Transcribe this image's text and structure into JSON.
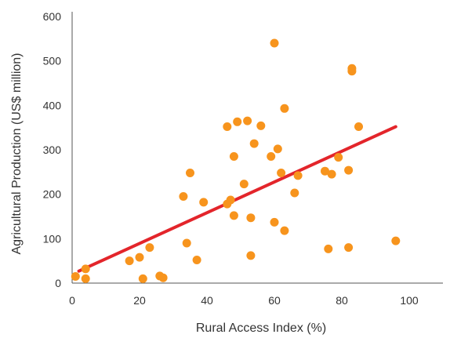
{
  "chart_data": {
    "type": "scatter",
    "xlabel": "Rural Access Index (%)",
    "ylabel": "Agricultural Production (US$ million)",
    "xlim": [
      0,
      110
    ],
    "ylim": [
      0,
      600
    ],
    "x_ticks": [
      0,
      20,
      40,
      60,
      80,
      100
    ],
    "y_ticks": [
      0,
      100,
      200,
      300,
      400,
      500,
      600
    ],
    "grid": false,
    "legend": "none",
    "points": [
      {
        "x": 1,
        "y": 15
      },
      {
        "x": 4,
        "y": 32
      },
      {
        "x": 4,
        "y": 10
      },
      {
        "x": 17,
        "y": 50
      },
      {
        "x": 20,
        "y": 58
      },
      {
        "x": 21,
        "y": 10
      },
      {
        "x": 23,
        "y": 80
      },
      {
        "x": 26,
        "y": 16
      },
      {
        "x": 27,
        "y": 12
      },
      {
        "x": 33,
        "y": 195
      },
      {
        "x": 34,
        "y": 90
      },
      {
        "x": 35,
        "y": 248
      },
      {
        "x": 37,
        "y": 52
      },
      {
        "x": 39,
        "y": 182
      },
      {
        "x": 46,
        "y": 352
      },
      {
        "x": 46,
        "y": 178
      },
      {
        "x": 47,
        "y": 187
      },
      {
        "x": 48,
        "y": 152
      },
      {
        "x": 48,
        "y": 285
      },
      {
        "x": 49,
        "y": 363
      },
      {
        "x": 51,
        "y": 223
      },
      {
        "x": 52,
        "y": 365
      },
      {
        "x": 53,
        "y": 147
      },
      {
        "x": 53,
        "y": 62
      },
      {
        "x": 54,
        "y": 314
      },
      {
        "x": 56,
        "y": 354
      },
      {
        "x": 59,
        "y": 285
      },
      {
        "x": 60,
        "y": 540
      },
      {
        "x": 60,
        "y": 137
      },
      {
        "x": 61,
        "y": 302
      },
      {
        "x": 62,
        "y": 248
      },
      {
        "x": 63,
        "y": 393
      },
      {
        "x": 63,
        "y": 118
      },
      {
        "x": 66,
        "y": 203
      },
      {
        "x": 67,
        "y": 242
      },
      {
        "x": 75,
        "y": 252
      },
      {
        "x": 76,
        "y": 77
      },
      {
        "x": 77,
        "y": 245
      },
      {
        "x": 79,
        "y": 283
      },
      {
        "x": 82,
        "y": 80
      },
      {
        "x": 82,
        "y": 254
      },
      {
        "x": 83,
        "y": 477
      },
      {
        "x": 83,
        "y": 483
      },
      {
        "x": 85,
        "y": 352
      },
      {
        "x": 96,
        "y": 95
      }
    ],
    "trendline": {
      "x": [
        2,
        96
      ],
      "y": [
        27,
        352
      ]
    },
    "colors": {
      "points": "#f7941d",
      "trendline": "#e3252b",
      "axis": "#555555",
      "text": "#333333"
    }
  }
}
